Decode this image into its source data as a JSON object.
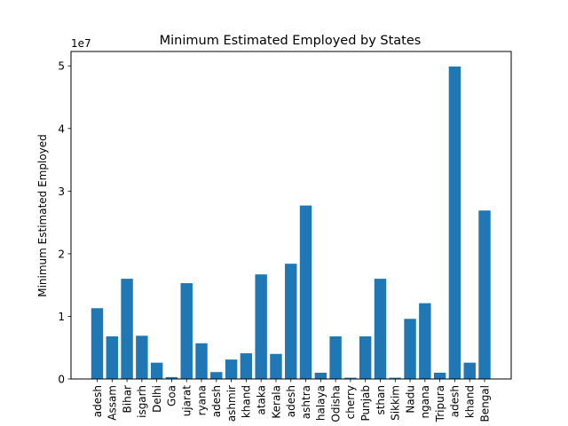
{
  "chart_data": {
    "type": "bar",
    "title": "Minimum Estimated Employed by States",
    "xlabel": "",
    "ylabel": "Minimum Estimated Employed",
    "offset_text": "1e7",
    "ylim": [
      0,
      5.23
    ],
    "yticks": [
      0,
      1,
      2,
      3,
      4,
      5
    ],
    "ytick_labels": [
      "0",
      "1",
      "2",
      "3",
      "4",
      "5"
    ],
    "categories": [
      "adesh",
      "Assam",
      "Bihar",
      "isgarh",
      "Delhi",
      "Goa",
      "ujarat",
      "ryana",
      "adesh",
      "ashmir",
      "khand",
      "ataka",
      "Kerala",
      "adesh",
      "ashtra",
      "halaya",
      "Odisha",
      "cherry",
      "Punjab",
      "sthan",
      "Sikkim",
      "Nadu",
      "ngana",
      "Tripura",
      "adesh",
      "khand",
      "Bengal"
    ],
    "values": [
      1.13,
      0.68,
      1.6,
      0.69,
      0.26,
      0.03,
      1.53,
      0.57,
      0.11,
      0.31,
      0.41,
      1.67,
      0.4,
      1.84,
      2.77,
      0.1,
      0.68,
      0.02,
      0.68,
      1.6,
      0.02,
      0.96,
      1.21,
      0.1,
      4.99,
      0.26,
      2.69
    ],
    "bar_color": "#1f77b4",
    "grid": false
  }
}
